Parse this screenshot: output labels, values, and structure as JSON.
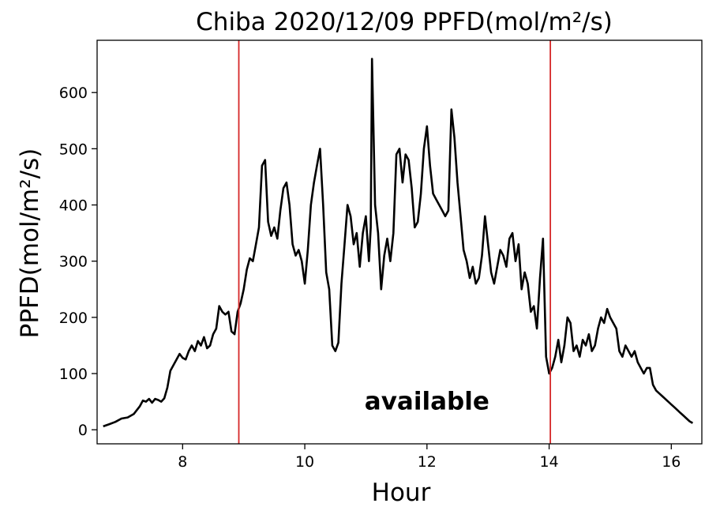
{
  "chart_data": {
    "type": "line",
    "title": "Chiba 2020/12/09 PPFD(mol/m²/s)",
    "xlabel": "Hour",
    "ylabel": "PPFD(mol/m²/s)",
    "xlim": [
      6.6,
      16.5
    ],
    "ylim": [
      -25,
      693
    ],
    "xticks": [
      8,
      10,
      12,
      14,
      16
    ],
    "yticks": [
      0,
      100,
      200,
      300,
      400,
      500,
      600
    ],
    "grid": false,
    "line_color": "#000000",
    "vline_color": "#d62728",
    "vlines": [
      8.92,
      14.02
    ],
    "annotation": "available",
    "annotation_pos": [
      12.0,
      50
    ],
    "series": [
      {
        "x": [
          6.7,
          6.8,
          6.9,
          7.0,
          7.1,
          7.2,
          7.3,
          7.35,
          7.4,
          7.45,
          7.5,
          7.55,
          7.6,
          7.65,
          7.7,
          7.75,
          7.8,
          7.85,
          7.9,
          7.95,
          8.0,
          8.05,
          8.1,
          8.15,
          8.2,
          8.25,
          8.3,
          8.35,
          8.4,
          8.45,
          8.5,
          8.55,
          8.6,
          8.65,
          8.7,
          8.75,
          8.8,
          8.85,
          8.9,
          8.95,
          9.0,
          9.05,
          9.1,
          9.15,
          9.2,
          9.25,
          9.3,
          9.35,
          9.4,
          9.45,
          9.5,
          9.55,
          9.6,
          9.65,
          9.7,
          9.75,
          9.8,
          9.85,
          9.9,
          9.95,
          10.0,
          10.05,
          10.1,
          10.15,
          10.2,
          10.25,
          10.3,
          10.35,
          10.4,
          10.45,
          10.5,
          10.55,
          10.6,
          10.65,
          10.7,
          10.75,
          10.8,
          10.85,
          10.9,
          10.95,
          11.0,
          11.05,
          11.08,
          11.1,
          11.15,
          11.2,
          11.25,
          11.3,
          11.35,
          11.4,
          11.45,
          11.5,
          11.55,
          11.6,
          11.65,
          11.7,
          11.75,
          11.8,
          11.85,
          11.9,
          11.95,
          12.0,
          12.05,
          12.1,
          12.15,
          12.2,
          12.25,
          12.3,
          12.35,
          12.4,
          12.45,
          12.5,
          12.55,
          12.6,
          12.65,
          12.7,
          12.75,
          12.8,
          12.85,
          12.9,
          12.95,
          13.0,
          13.05,
          13.1,
          13.15,
          13.2,
          13.25,
          13.3,
          13.35,
          13.4,
          13.45,
          13.5,
          13.55,
          13.6,
          13.65,
          13.7,
          13.75,
          13.8,
          13.85,
          13.9,
          13.95,
          14.0,
          14.05,
          14.1,
          14.15,
          14.2,
          14.25,
          14.3,
          14.35,
          14.4,
          14.45,
          14.5,
          14.55,
          14.6,
          14.65,
          14.7,
          14.75,
          14.8,
          14.85,
          14.9,
          14.95,
          15.0,
          15.05,
          15.1,
          15.15,
          15.2,
          15.25,
          15.3,
          15.35,
          15.4,
          15.45,
          15.5,
          15.55,
          15.6,
          15.65,
          15.7,
          15.75,
          15.8,
          15.85,
          15.9,
          15.95,
          16.0,
          16.05,
          16.1,
          16.15,
          16.2,
          16.25,
          16.3,
          16.35
        ],
        "y": [
          6,
          10,
          14,
          20,
          22,
          28,
          42,
          52,
          50,
          55,
          48,
          55,
          53,
          50,
          56,
          75,
          105,
          115,
          125,
          135,
          128,
          125,
          140,
          150,
          140,
          158,
          150,
          165,
          145,
          150,
          170,
          180,
          220,
          210,
          205,
          210,
          175,
          170,
          210,
          225,
          250,
          285,
          305,
          300,
          330,
          360,
          470,
          480,
          370,
          345,
          360,
          340,
          390,
          430,
          440,
          400,
          330,
          310,
          320,
          300,
          260,
          320,
          400,
          440,
          470,
          500,
          400,
          280,
          250,
          150,
          140,
          155,
          260,
          330,
          400,
          380,
          330,
          350,
          290,
          350,
          380,
          300,
          360,
          660,
          400,
          350,
          250,
          310,
          340,
          300,
          350,
          490,
          500,
          440,
          490,
          480,
          430,
          360,
          370,
          420,
          500,
          540,
          470,
          420,
          410,
          400,
          390,
          380,
          390,
          570,
          520,
          440,
          380,
          320,
          300,
          270,
          290,
          260,
          270,
          310,
          380,
          330,
          280,
          260,
          290,
          320,
          310,
          290,
          340,
          350,
          300,
          330,
          250,
          280,
          260,
          210,
          220,
          180,
          270,
          340,
          130,
          100,
          110,
          130,
          160,
          120,
          150,
          200,
          190,
          140,
          150,
          130,
          160,
          150,
          170,
          140,
          150,
          180,
          200,
          190,
          215,
          200,
          190,
          180,
          140,
          130,
          150,
          140,
          130,
          140,
          120,
          110,
          100,
          110,
          110,
          80,
          70,
          65,
          60,
          55,
          50,
          45,
          40,
          35,
          30,
          25,
          20,
          15,
          12
        ]
      }
    ]
  }
}
